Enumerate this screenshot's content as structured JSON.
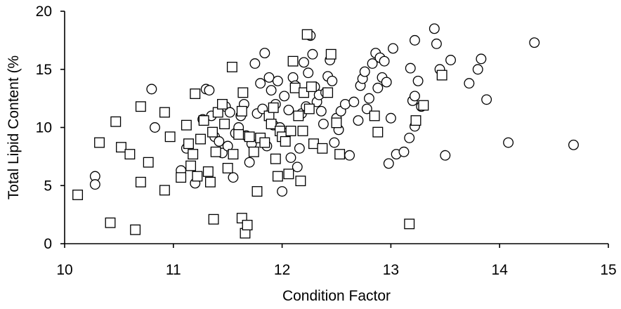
{
  "chart_data": {
    "type": "scatter",
    "xlabel": "Condition Factor",
    "ylabel": "Total Lipid Content  (%",
    "xlim": [
      10,
      15
    ],
    "ylim": [
      0,
      20
    ],
    "x_ticks": [
      "10",
      "11",
      "12",
      "13",
      "14",
      "15"
    ],
    "y_ticks": [
      "0",
      "5",
      "10",
      "15",
      "20"
    ],
    "grid": false,
    "series": [
      {
        "marker": "circle",
        "points": [
          [
            10.28,
            5.8
          ],
          [
            10.28,
            5.1
          ],
          [
            10.8,
            13.3
          ],
          [
            10.83,
            10.0
          ],
          [
            11.07,
            6.3
          ],
          [
            11.12,
            8.2
          ],
          [
            11.2,
            5.2
          ],
          [
            11.27,
            10.7
          ],
          [
            11.3,
            13.3
          ],
          [
            11.33,
            13.2
          ],
          [
            11.35,
            11.0
          ],
          [
            11.38,
            9.2
          ],
          [
            11.42,
            8.8
          ],
          [
            11.45,
            7.8
          ],
          [
            11.48,
            11.8
          ],
          [
            11.5,
            8.4
          ],
          [
            11.52,
            11.3
          ],
          [
            11.55,
            5.7
          ],
          [
            11.57,
            9.5
          ],
          [
            11.6,
            10.0
          ],
          [
            11.62,
            11.0
          ],
          [
            11.65,
            12.0
          ],
          [
            11.67,
            9.3
          ],
          [
            11.7,
            7.0
          ],
          [
            11.72,
            8.6
          ],
          [
            11.75,
            15.5
          ],
          [
            11.77,
            11.2
          ],
          [
            11.8,
            13.8
          ],
          [
            11.82,
            11.6
          ],
          [
            11.84,
            16.4
          ],
          [
            11.86,
            8.4
          ],
          [
            11.88,
            14.3
          ],
          [
            11.9,
            13.2
          ],
          [
            11.92,
            10.2
          ],
          [
            11.94,
            12.0
          ],
          [
            11.96,
            14.0
          ],
          [
            11.98,
            10.0
          ],
          [
            12.0,
            4.5
          ],
          [
            12.02,
            12.7
          ],
          [
            12.04,
            9.5
          ],
          [
            12.06,
            11.5
          ],
          [
            12.08,
            7.4
          ],
          [
            12.1,
            14.3
          ],
          [
            12.12,
            13.6
          ],
          [
            12.14,
            6.6
          ],
          [
            12.16,
            8.2
          ],
          [
            12.18,
            11.2
          ],
          [
            12.2,
            15.6
          ],
          [
            12.22,
            11.8
          ],
          [
            12.24,
            14.7
          ],
          [
            12.26,
            17.9
          ],
          [
            12.28,
            16.3
          ],
          [
            12.3,
            13.5
          ],
          [
            12.32,
            12.2
          ],
          [
            12.34,
            12.8
          ],
          [
            12.36,
            11.4
          ],
          [
            12.38,
            10.3
          ],
          [
            12.4,
            13.0
          ],
          [
            12.42,
            14.4
          ],
          [
            12.44,
            15.8
          ],
          [
            12.46,
            14.0
          ],
          [
            12.48,
            8.7
          ],
          [
            12.5,
            10.8
          ],
          [
            12.52,
            9.8
          ],
          [
            12.54,
            11.4
          ],
          [
            12.58,
            12.0
          ],
          [
            12.62,
            7.6
          ],
          [
            12.66,
            12.2
          ],
          [
            12.7,
            10.6
          ],
          [
            12.72,
            13.6
          ],
          [
            12.74,
            14.2
          ],
          [
            12.76,
            14.8
          ],
          [
            12.78,
            11.6
          ],
          [
            12.8,
            12.5
          ],
          [
            12.83,
            15.5
          ],
          [
            12.86,
            16.4
          ],
          [
            12.88,
            13.4
          ],
          [
            12.9,
            16.0
          ],
          [
            12.92,
            14.3
          ],
          [
            12.94,
            15.7
          ],
          [
            12.96,
            13.9
          ],
          [
            12.98,
            6.9
          ],
          [
            13.0,
            10.8
          ],
          [
            13.02,
            16.8
          ],
          [
            13.05,
            7.7
          ],
          [
            13.12,
            7.9
          ],
          [
            13.17,
            9.1
          ],
          [
            13.2,
            12.3
          ],
          [
            13.22,
            12.7
          ],
          [
            13.22,
            10.1
          ],
          [
            13.25,
            14.0
          ],
          [
            13.28,
            11.8
          ],
          [
            13.18,
            15.1
          ],
          [
            13.22,
            17.5
          ],
          [
            13.4,
            18.5
          ],
          [
            13.42,
            17.2
          ],
          [
            13.45,
            15.0
          ],
          [
            13.5,
            7.6
          ],
          [
            13.55,
            15.8
          ],
          [
            13.72,
            13.8
          ],
          [
            13.8,
            15.0
          ],
          [
            13.83,
            15.9
          ],
          [
            13.88,
            12.4
          ],
          [
            14.08,
            8.7
          ],
          [
            14.32,
            17.3
          ],
          [
            14.68,
            8.5
          ]
        ]
      },
      {
        "marker": "square",
        "points": [
          [
            10.12,
            4.2
          ],
          [
            10.32,
            8.7
          ],
          [
            10.42,
            1.8
          ],
          [
            10.47,
            10.5
          ],
          [
            10.52,
            8.3
          ],
          [
            10.6,
            7.7
          ],
          [
            10.65,
            1.2
          ],
          [
            10.7,
            11.8
          ],
          [
            10.7,
            5.3
          ],
          [
            10.77,
            7.0
          ],
          [
            10.92,
            11.3
          ],
          [
            10.92,
            4.6
          ],
          [
            10.97,
            9.2
          ],
          [
            11.07,
            5.7
          ],
          [
            11.12,
            10.2
          ],
          [
            11.14,
            8.6
          ],
          [
            11.16,
            6.7
          ],
          [
            11.18,
            7.7
          ],
          [
            11.2,
            12.9
          ],
          [
            11.22,
            5.8
          ],
          [
            11.25,
            9.0
          ],
          [
            11.28,
            10.6
          ],
          [
            11.32,
            6.2
          ],
          [
            11.34,
            5.3
          ],
          [
            11.36,
            9.6
          ],
          [
            11.37,
            2.1
          ],
          [
            11.39,
            7.9
          ],
          [
            11.41,
            11.3
          ],
          [
            11.45,
            12.0
          ],
          [
            11.47,
            10.3
          ],
          [
            11.5,
            6.5
          ],
          [
            11.54,
            15.2
          ],
          [
            11.55,
            7.7
          ],
          [
            11.6,
            9.4
          ],
          [
            11.63,
            2.2
          ],
          [
            11.63,
            11.4
          ],
          [
            11.64,
            13.0
          ],
          [
            11.66,
            0.9
          ],
          [
            11.68,
            1.6
          ],
          [
            11.7,
            9.2
          ],
          [
            11.74,
            7.9
          ],
          [
            11.77,
            4.5
          ],
          [
            11.8,
            9.1
          ],
          [
            11.84,
            8.7
          ],
          [
            11.88,
            11.0
          ],
          [
            11.9,
            10.3
          ],
          [
            11.92,
            11.7
          ],
          [
            11.94,
            7.3
          ],
          [
            11.96,
            5.8
          ],
          [
            11.98,
            9.7
          ],
          [
            12.0,
            9.2
          ],
          [
            12.03,
            8.8
          ],
          [
            12.06,
            6.0
          ],
          [
            12.08,
            9.7
          ],
          [
            12.1,
            15.7
          ],
          [
            12.12,
            13.4
          ],
          [
            12.15,
            11.0
          ],
          [
            12.17,
            5.4
          ],
          [
            12.19,
            9.7
          ],
          [
            12.2,
            13.0
          ],
          [
            12.23,
            18.0
          ],
          [
            12.25,
            11.6
          ],
          [
            12.27,
            13.5
          ],
          [
            12.29,
            8.6
          ],
          [
            12.37,
            8.2
          ],
          [
            12.42,
            13.0
          ],
          [
            12.45,
            16.3
          ],
          [
            12.5,
            10.4
          ],
          [
            12.53,
            7.7
          ],
          [
            12.85,
            11.0
          ],
          [
            12.88,
            9.6
          ],
          [
            13.17,
            1.7
          ],
          [
            13.23,
            10.6
          ],
          [
            13.3,
            11.9
          ],
          [
            13.47,
            14.5
          ]
        ]
      }
    ]
  }
}
